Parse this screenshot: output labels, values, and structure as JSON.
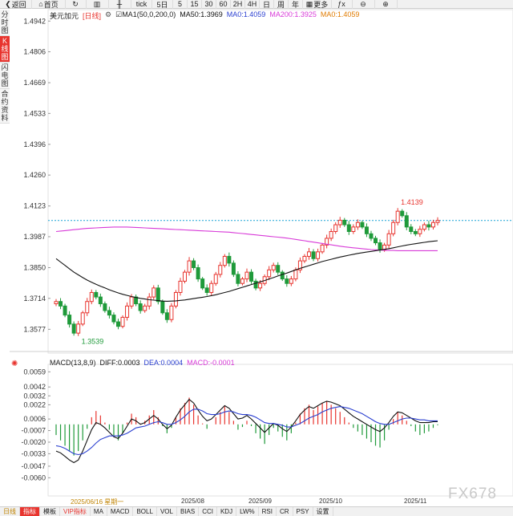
{
  "toolbar": {
    "items": [
      {
        "icon": "back-icon",
        "glyph": "❮",
        "label": "返回"
      },
      {
        "icon": "home-icon",
        "glyph": "⌂",
        "label": "首页"
      },
      {
        "icon": "refresh-icon",
        "glyph": "↻",
        "label": ""
      },
      {
        "icon": "candlestick-icon",
        "glyph": "▥",
        "label": ""
      },
      {
        "icon": "kline-icon",
        "glyph": "╫",
        "label": ""
      },
      {
        "icon": "",
        "glyph": "",
        "label": "tick"
      },
      {
        "icon": "",
        "glyph": "",
        "label": "5日"
      },
      {
        "icon": "",
        "glyph": "",
        "label": "5"
      },
      {
        "icon": "",
        "glyph": "",
        "label": "15"
      },
      {
        "icon": "",
        "glyph": "",
        "label": "30"
      },
      {
        "icon": "",
        "glyph": "",
        "label": "60"
      },
      {
        "icon": "",
        "glyph": "",
        "label": "2H"
      },
      {
        "icon": "",
        "glyph": "",
        "label": "4H"
      },
      {
        "icon": "",
        "glyph": "",
        "label": "日"
      },
      {
        "icon": "",
        "glyph": "",
        "label": "周"
      },
      {
        "icon": "",
        "glyph": "",
        "label": "年"
      },
      {
        "icon": "grid-icon",
        "glyph": "▦",
        "label": "更多"
      },
      {
        "icon": "formula-icon",
        "glyph": "ƒx",
        "label": ""
      },
      {
        "icon": "zoom-out-icon",
        "glyph": "⊖",
        "label": ""
      },
      {
        "icon": "zoom-in-icon",
        "glyph": "⊕",
        "label": ""
      }
    ]
  },
  "side_tabs": [
    {
      "label": "分时图",
      "active": false
    },
    {
      "label": "K线图",
      "active": true
    },
    {
      "label": "闪电图",
      "active": false
    },
    {
      "label": "合约资料",
      "active": false
    }
  ],
  "legend": {
    "symbol": "美元加元",
    "period": "[日线]",
    "ma_set": "MA1(50,0,200,0)",
    "ma50": "MA50:1.3969",
    "ma0a": "MA0:1.4059",
    "ma200": "MA200:1.3925",
    "ma0b": "MA0:1.4059"
  },
  "macd_legend": {
    "name": "MACD(13,8,9)",
    "diff": "DIFF:0.0003",
    "dea": "DEA:0.0004",
    "macd": "MACD:-0.0001"
  },
  "colors": {
    "up": "#e8342e",
    "down": "#1f9a3a",
    "ma50": "#111111",
    "ma200": "#d83ad8",
    "dea": "#2a3fd0",
    "current_price_line": "#1aa3d6",
    "hi_label": "#e8342e",
    "lo_label": "#1f9a3a",
    "axis_text": "#333333"
  },
  "chart_data": {
    "type": "candlestick",
    "price_axis_ticks": [
      "1.4942",
      "1.4806",
      "1.4669",
      "1.4533",
      "1.4396",
      "1.4260",
      "1.4123",
      "1.3987",
      "1.3850",
      "1.3714",
      "1.3577"
    ],
    "price_range": [
      1.35,
      1.495
    ],
    "high_marker": "1.4139",
    "low_marker": "1.3539",
    "current_price": 1.4059,
    "macd_axis_ticks": [
      "0.0059",
      "0.0042",
      "0.0032",
      "0.0022",
      "0.0006",
      "-0.0007",
      "-0.0020",
      "-0.0033",
      "-0.0047",
      "-0.0060"
    ],
    "macd_range": [
      -0.0075,
      0.0062
    ],
    "date_labels": [
      "2025/06/16 星期一",
      "2025/08",
      "2025/09",
      "2025/10",
      "2025/11"
    ],
    "period_tag": "日线",
    "closes": [
      1.37,
      1.368,
      1.364,
      1.36,
      1.356,
      1.36,
      1.365,
      1.37,
      1.374,
      1.372,
      1.369,
      1.366,
      1.364,
      1.361,
      1.359,
      1.363,
      1.368,
      1.372,
      1.369,
      1.366,
      1.368,
      1.372,
      1.376,
      1.37,
      1.365,
      1.362,
      1.368,
      1.374,
      1.379,
      1.383,
      1.388,
      1.385,
      1.38,
      1.376,
      1.374,
      1.378,
      1.382,
      1.386,
      1.39,
      1.387,
      1.382,
      1.378,
      1.38,
      1.383,
      1.379,
      1.376,
      1.378,
      1.381,
      1.384,
      1.386,
      1.383,
      1.38,
      1.378,
      1.38,
      1.384,
      1.388,
      1.39,
      1.392,
      1.389,
      1.392,
      1.395,
      1.398,
      1.401,
      1.404,
      1.406,
      1.404,
      1.401,
      1.403,
      1.405,
      1.403,
      1.4,
      1.398,
      1.396,
      1.393,
      1.395,
      1.4,
      1.405,
      1.41,
      1.408,
      1.403,
      1.401,
      1.4,
      1.402,
      1.404,
      1.403,
      1.405,
      1.4059
    ],
    "ma50": [
      1.389,
      1.3875,
      1.386,
      1.3845,
      1.383,
      1.3818,
      1.3806,
      1.3795,
      1.3785,
      1.3776,
      1.3768,
      1.376,
      1.3752,
      1.3745,
      1.3738,
      1.3732,
      1.3727,
      1.3722,
      1.3718,
      1.3714,
      1.3711,
      1.3708,
      1.3706,
      1.3704,
      1.3702,
      1.3701,
      1.3702,
      1.3703,
      1.3705,
      1.3707,
      1.371,
      1.3713,
      1.3716,
      1.3719,
      1.3722,
      1.3726,
      1.373,
      1.3735,
      1.374,
      1.3745,
      1.3751,
      1.3757,
      1.3763,
      1.3769,
      1.3775,
      1.3781,
      1.3787,
      1.3793,
      1.38,
      1.3806,
      1.3813,
      1.382,
      1.3826,
      1.3833,
      1.384,
      1.3847,
      1.3853,
      1.3859,
      1.3865,
      1.3871,
      1.3877,
      1.3882,
      1.3887,
      1.3892,
      1.3897,
      1.3901,
      1.3905,
      1.3909,
      1.3913,
      1.3916,
      1.3919,
      1.3922,
      1.3925,
      1.3928,
      1.3931,
      1.3934,
      1.3938,
      1.3942,
      1.3946,
      1.395,
      1.3953,
      1.3956,
      1.3959,
      1.3962,
      1.3965,
      1.3967,
      1.3969
    ],
    "ma200": [
      1.401,
      1.4012,
      1.4014,
      1.4016,
      1.4018,
      1.402,
      1.4022,
      1.4024,
      1.4025,
      1.4026,
      1.4027,
      1.4028,
      1.4029,
      1.403,
      1.403,
      1.403,
      1.403,
      1.4029,
      1.4028,
      1.4027,
      1.4026,
      1.4025,
      1.4024,
      1.4023,
      1.4022,
      1.4021,
      1.402,
      1.4019,
      1.4018,
      1.4017,
      1.4016,
      1.4015,
      1.4014,
      1.4013,
      1.4012,
      1.4011,
      1.401,
      1.4009,
      1.4008,
      1.4007,
      1.4005,
      1.4003,
      1.4001,
      1.3999,
      1.3997,
      1.3995,
      1.3993,
      1.3991,
      1.3989,
      1.3987,
      1.3985,
      1.3983,
      1.3981,
      1.3978,
      1.3975,
      1.3972,
      1.3969,
      1.3966,
      1.3963,
      1.396,
      1.3957,
      1.3954,
      1.3951,
      1.3948,
      1.3945,
      1.3942,
      1.394,
      1.3938,
      1.3936,
      1.3934,
      1.3932,
      1.393,
      1.3929,
      1.3928,
      1.3927,
      1.3926,
      1.3926,
      1.3925,
      1.3925,
      1.3925,
      1.3925,
      1.3925,
      1.3925,
      1.3925,
      1.3925,
      1.3925,
      1.3925
    ],
    "macd_hist": [
      -0.0012,
      -0.0018,
      -0.0024,
      -0.003,
      -0.0035,
      -0.003,
      -0.0018,
      -0.0005,
      0.0008,
      0.0015,
      0.001,
      0.0002,
      -0.0006,
      -0.0014,
      -0.0018,
      -0.001,
      0.0002,
      0.0012,
      0.0008,
      0.0001,
      0.0004,
      0.001,
      0.0016,
      0.0008,
      -0.0002,
      -0.001,
      -0.0004,
      0.0008,
      0.0018,
      0.0024,
      0.003,
      0.0022,
      0.001,
      0.0001,
      -0.0005,
      0.0,
      0.0008,
      0.0014,
      0.002,
      0.0014,
      0.0004,
      -0.0006,
      -0.0003,
      0.0004,
      -0.0002,
      -0.001,
      -0.0016,
      -0.0022,
      -0.0012,
      -0.0004,
      -0.0008,
      -0.0014,
      -0.0018,
      -0.001,
      0.0002,
      0.0012,
      0.0018,
      0.0022,
      0.0016,
      0.002,
      0.0024,
      0.0026,
      0.0022,
      0.0018,
      0.0014,
      0.0008,
      0.0002,
      -0.0004,
      -0.0008,
      -0.0012,
      -0.0016,
      -0.002,
      -0.0024,
      -0.0026,
      -0.0018,
      -0.0006,
      0.0006,
      0.0014,
      0.001,
      0.0004,
      -0.0002,
      -0.0008,
      -0.0012,
      -0.001,
      -0.0008,
      -0.0004,
      -0.0001
    ],
    "macd_diff": [
      -0.003,
      -0.0032,
      -0.0036,
      -0.004,
      -0.0043,
      -0.004,
      -0.003,
      -0.0018,
      -0.0006,
      0.0002,
      0.0,
      -0.0004,
      -0.0009,
      -0.0014,
      -0.0016,
      -0.001,
      -0.0002,
      0.0006,
      0.0004,
      0.0,
      0.0002,
      0.0006,
      0.001,
      0.0006,
      0.0,
      -0.0005,
      -0.0001,
      0.0008,
      0.0016,
      0.0022,
      0.0028,
      0.0024,
      0.0016,
      0.0009,
      0.0004,
      0.0006,
      0.0011,
      0.0016,
      0.0021,
      0.0018,
      0.0012,
      0.0006,
      0.0007,
      0.001,
      0.0006,
      0.0001,
      -0.0004,
      -0.0009,
      -0.0004,
      0.0001,
      -0.0001,
      -0.0005,
      -0.0008,
      -0.0003,
      0.0004,
      0.0011,
      0.0016,
      0.002,
      0.0018,
      0.0021,
      0.0024,
      0.0026,
      0.0025,
      0.0023,
      0.0021,
      0.0017,
      0.0013,
      0.0009,
      0.0006,
      0.0003,
      0.0,
      -0.0003,
      -0.0006,
      -0.0008,
      -0.0004,
      0.0002,
      0.0009,
      0.0014,
      0.0013,
      0.001,
      0.0007,
      0.0004,
      0.0002,
      0.0002,
      0.0002,
      0.0003,
      0.0003
    ],
    "macd_dea": [
      -0.0024,
      -0.0025,
      -0.0027,
      -0.003,
      -0.0033,
      -0.0034,
      -0.0033,
      -0.003,
      -0.0026,
      -0.0021,
      -0.0017,
      -0.0015,
      -0.0013,
      -0.0013,
      -0.0013,
      -0.0012,
      -0.001,
      -0.0007,
      -0.0004,
      -0.0003,
      -0.0002,
      0.0,
      0.0002,
      0.0003,
      0.0002,
      0.0,
      0.0,
      0.0002,
      0.0005,
      0.0009,
      0.0014,
      0.0017,
      0.0017,
      0.0015,
      0.0012,
      0.0011,
      0.0011,
      0.0012,
      0.0014,
      0.0015,
      0.0014,
      0.0012,
      0.0011,
      0.0011,
      0.001,
      0.0008,
      0.0005,
      0.0002,
      0.0001,
      0.0001,
      0.0,
      -0.0001,
      -0.0003,
      -0.0003,
      -0.0001,
      0.0001,
      0.0004,
      0.0007,
      0.0009,
      0.0011,
      0.0014,
      0.0016,
      0.0018,
      0.0019,
      0.002,
      0.0019,
      0.0018,
      0.0016,
      0.0014,
      0.0012,
      0.0009,
      0.0006,
      0.0003,
      0.0001,
      0.0,
      0.0,
      0.0002,
      0.0004,
      0.0006,
      0.0007,
      0.0007,
      0.0006,
      0.0005,
      0.0005,
      0.0004,
      0.0004,
      0.0004
    ]
  },
  "indicator_bar": {
    "period_tab": "日线",
    "items": [
      {
        "label": "指标",
        "state": "sel"
      },
      {
        "label": "模板",
        "state": ""
      },
      {
        "label": "VIP指标",
        "state": "active"
      },
      {
        "label": "MA",
        "state": ""
      },
      {
        "label": "MACD",
        "state": ""
      },
      {
        "label": "BOLL",
        "state": ""
      },
      {
        "label": "VOL",
        "state": ""
      },
      {
        "label": "BIAS",
        "state": ""
      },
      {
        "label": "CCI",
        "state": ""
      },
      {
        "label": "KDJ",
        "state": ""
      },
      {
        "label": "LW%",
        "state": ""
      },
      {
        "label": "RSI",
        "state": ""
      },
      {
        "label": "CR",
        "state": ""
      },
      {
        "label": "PSY",
        "state": ""
      },
      {
        "label": "设置",
        "state": ""
      }
    ]
  },
  "watermark": "FX678"
}
